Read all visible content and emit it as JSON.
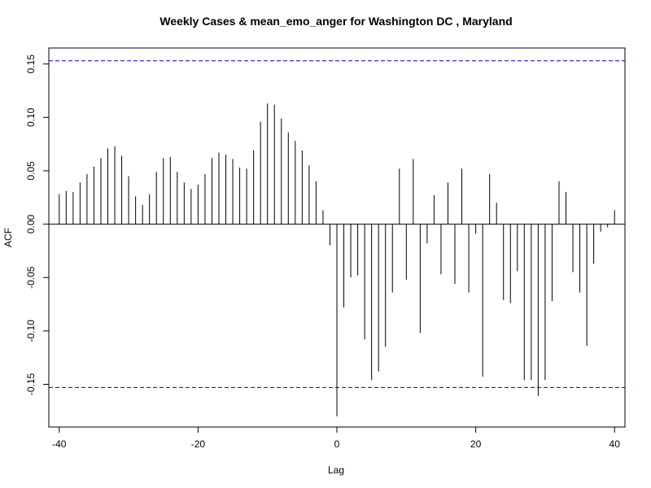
{
  "chart_data": {
    "type": "bar",
    "title": "Weekly Cases & mean_emo_anger for Washington DC , Maryland",
    "xlabel": "Lag",
    "ylabel": "ACF",
    "xlim": [
      -41.5,
      41.5
    ],
    "ylim": [
      -0.19,
      0.165
    ],
    "x_ticks": [
      -40,
      -20,
      0,
      20,
      40
    ],
    "x_tick_labels": [
      "-40",
      "-20",
      "0",
      "20",
      "40"
    ],
    "y_ticks": [
      -0.15,
      -0.1,
      -0.05,
      0.0,
      0.05,
      0.1,
      0.15
    ],
    "y_tick_labels": [
      "-0.15",
      "-0.10",
      "-0.05",
      "0.00",
      "0.05",
      "0.10",
      "0.15"
    ],
    "confidence_bound": 0.153,
    "bar_color": "#000000",
    "bound_color": "#0000cc",
    "lags": [
      -40,
      -39,
      -38,
      -37,
      -36,
      -35,
      -34,
      -33,
      -32,
      -31,
      -30,
      -29,
      -28,
      -27,
      -26,
      -25,
      -24,
      -23,
      -22,
      -21,
      -20,
      -19,
      -18,
      -17,
      -16,
      -15,
      -14,
      -13,
      -12,
      -11,
      -10,
      -9,
      -8,
      -7,
      -6,
      -5,
      -4,
      -3,
      -2,
      -1,
      0,
      1,
      2,
      3,
      4,
      5,
      6,
      7,
      8,
      9,
      10,
      11,
      12,
      13,
      14,
      15,
      16,
      17,
      18,
      19,
      20,
      21,
      22,
      23,
      24,
      25,
      26,
      27,
      28,
      29,
      30,
      31,
      32,
      33,
      34,
      35,
      36,
      37,
      38,
      39,
      40
    ],
    "acf": [
      0.028,
      0.031,
      0.03,
      0.039,
      0.047,
      0.054,
      0.062,
      0.071,
      0.073,
      0.064,
      0.045,
      0.026,
      0.018,
      0.028,
      0.049,
      0.062,
      0.063,
      0.049,
      0.039,
      0.033,
      0.037,
      0.047,
      0.062,
      0.067,
      0.065,
      0.061,
      0.053,
      0.052,
      0.069,
      0.096,
      0.113,
      0.112,
      0.099,
      0.086,
      0.078,
      0.069,
      0.055,
      0.04,
      0.013,
      -0.02,
      -0.18,
      -0.078,
      -0.05,
      -0.048,
      -0.108,
      -0.146,
      -0.138,
      -0.115,
      -0.064,
      0.052,
      -0.052,
      0.061,
      -0.102,
      -0.018,
      0.027,
      -0.047,
      0.039,
      -0.056,
      0.052,
      -0.064,
      -0.009,
      -0.143,
      0.047,
      0.02,
      -0.071,
      -0.074,
      -0.044,
      -0.146,
      -0.146,
      -0.161,
      -0.146,
      -0.072,
      0.04,
      0.03,
      -0.045,
      -0.064,
      -0.114,
      -0.037,
      -0.007,
      -0.003,
      0.013
    ]
  }
}
